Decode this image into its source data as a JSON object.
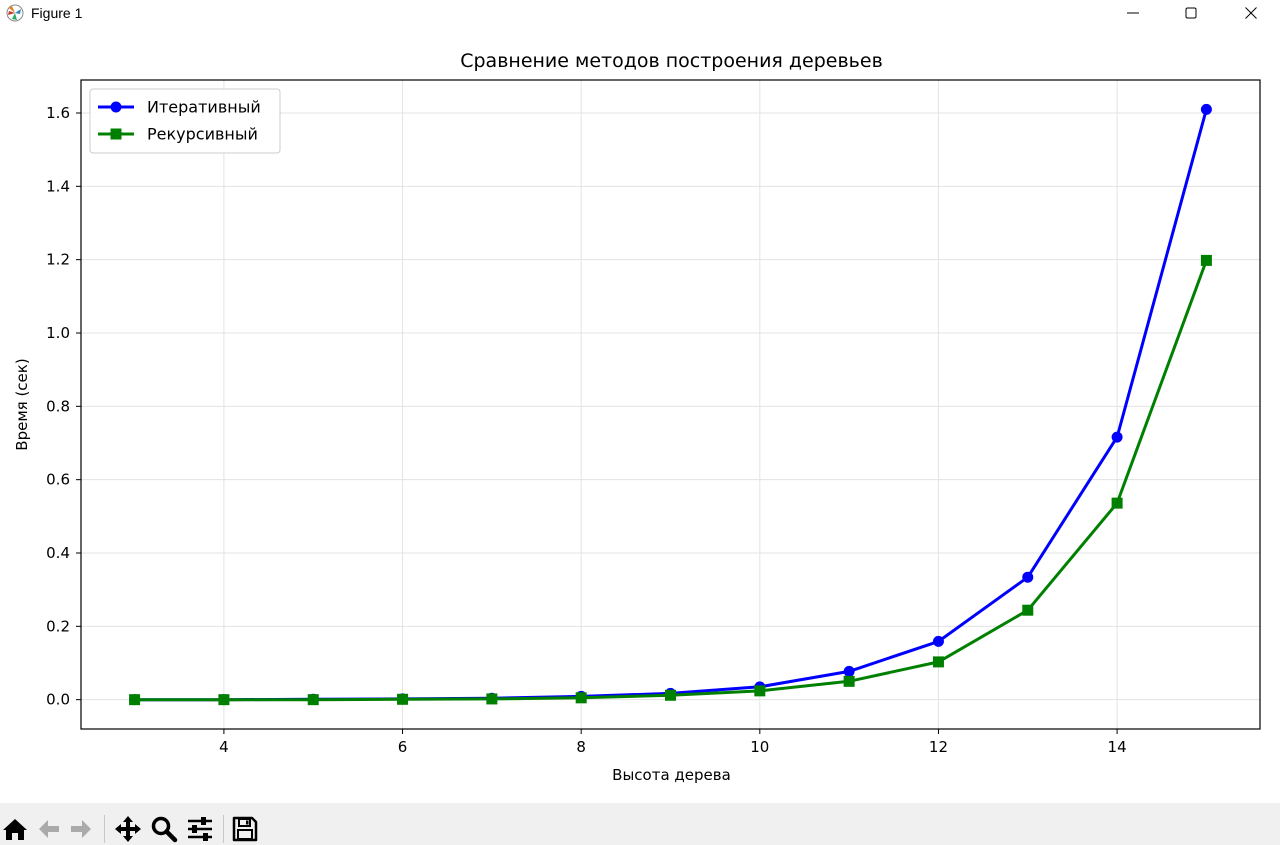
{
  "window": {
    "title": "Figure 1",
    "icons": [
      "matplotlib-icon",
      "minimize-icon",
      "maximize-icon",
      "close-icon"
    ]
  },
  "toolbar": {
    "buttons": [
      "home-icon",
      "back-icon",
      "forward-icon",
      "pan-icon",
      "zoom-icon",
      "configure-subplots-icon",
      "save-icon"
    ]
  },
  "chart_data": {
    "type": "line",
    "title": "Сравнение методов построения деревьев",
    "xlabel": "Высота дерева",
    "ylabel": "Время (сек)",
    "xlim": [
      2.4,
      15.6
    ],
    "ylim": [
      -0.08,
      1.69
    ],
    "xticks": [
      4,
      6,
      8,
      10,
      12,
      14
    ],
    "xtick_labels": [
      "4",
      "6",
      "8",
      "10",
      "12",
      "14"
    ],
    "yticks": [
      0.0,
      0.2,
      0.4,
      0.6,
      0.8,
      1.0,
      1.2,
      1.4,
      1.6
    ],
    "ytick_labels": [
      "0.0",
      "0.2",
      "0.4",
      "0.6",
      "0.8",
      "1.0",
      "1.2",
      "1.4",
      "1.6"
    ],
    "grid": true,
    "legend_position": "top-left",
    "x": [
      3,
      4,
      5,
      6,
      7,
      8,
      9,
      10,
      11,
      12,
      13,
      14,
      15
    ],
    "series": [
      {
        "name": "Итеративный",
        "color": "#0000ff",
        "marker": "circle",
        "values": [
          0.0,
          0.0,
          0.001,
          0.002,
          0.004,
          0.009,
          0.017,
          0.035,
          0.077,
          0.159,
          0.334,
          0.716,
          1.61
        ]
      },
      {
        "name": "Рекурсивный",
        "color": "#008000",
        "marker": "square",
        "values": [
          0.0,
          0.0,
          0.0,
          0.001,
          0.002,
          0.005,
          0.012,
          0.024,
          0.05,
          0.103,
          0.244,
          0.536,
          1.198
        ]
      }
    ]
  }
}
